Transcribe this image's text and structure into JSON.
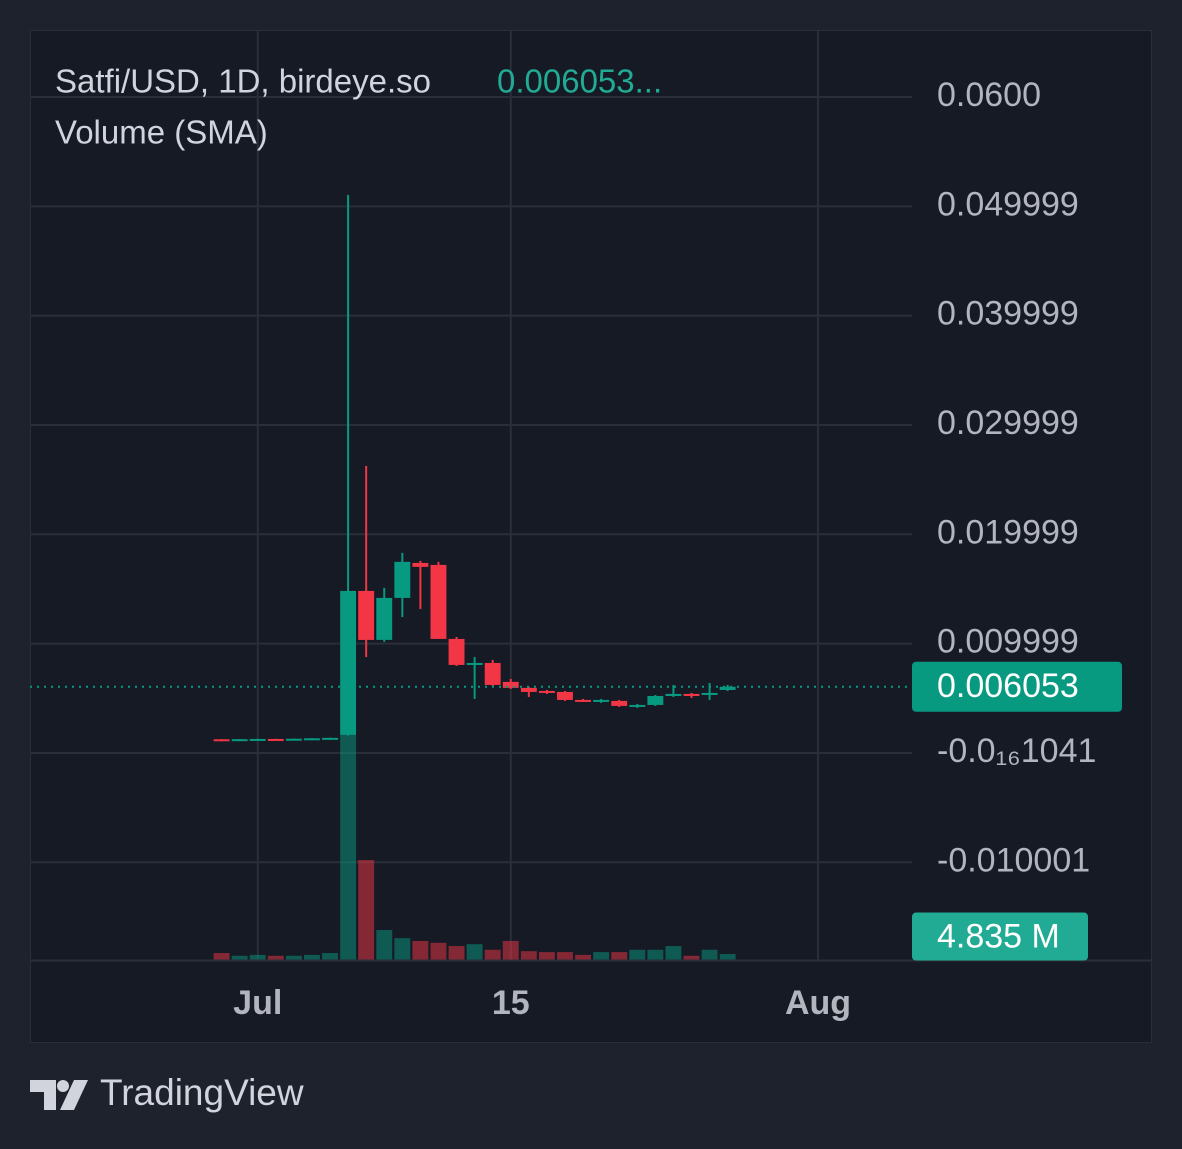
{
  "chart_data": {
    "type": "candlestick",
    "title": "Satfi/USD, 1D, birdeye.so",
    "price_label": "0.006053...",
    "subtitle": "Volume (SMA)",
    "x": [
      0,
      1,
      2,
      3,
      4,
      5,
      6,
      7,
      8,
      9,
      10,
      11,
      12,
      13,
      14,
      15,
      16,
      17,
      18,
      19,
      20,
      21,
      22,
      23,
      24,
      25,
      26,
      27,
      28
    ],
    "xlim": [
      -10.6,
      38.2
    ],
    "xticks": [
      {
        "value": 2,
        "label": "Jul"
      },
      {
        "value": 16,
        "label": "15"
      },
      {
        "value": 33,
        "label": "Aug"
      }
    ],
    "open": [
      0.00125,
      0.00122,
      0.00126,
      0.00128,
      0.00126,
      0.0013,
      0.00134,
      0.00165,
      0.01482,
      0.01034,
      0.01418,
      0.01738,
      0.0172,
      0.01043,
      0.00814,
      0.00823,
      0.0065,
      0.00595,
      0.00567,
      0.00558,
      0.00485,
      0.00467,
      0.00476,
      0.00421,
      0.00439,
      0.00521,
      0.0054,
      0.0053,
      0.00576
    ],
    "high": [
      0.00127,
      0.00128,
      0.0013,
      0.0013,
      0.00132,
      0.00136,
      0.0014,
      0.05105,
      0.02626,
      0.0151,
      0.0183,
      0.01757,
      0.01748,
      0.01061,
      0.00878,
      0.00851,
      0.00677,
      0.00604,
      0.00576,
      0.00567,
      0.00494,
      0.00494,
      0.00485,
      0.00448,
      0.0053,
      0.00622,
      0.00549,
      0.0064,
      0.00622
    ],
    "low": [
      0.0012,
      0.0012,
      0.00124,
      0.00124,
      0.00125,
      0.00128,
      0.00132,
      0.0016,
      0.00878,
      0.01016,
      0.01244,
      0.01317,
      0.01043,
      0.00796,
      0.00494,
      0.00613,
      0.00586,
      0.00512,
      0.0054,
      0.00476,
      0.00467,
      0.00458,
      0.00421,
      0.00412,
      0.0043,
      0.00512,
      0.00503,
      0.00485,
      0.00567
    ],
    "close": [
      0.00122,
      0.00126,
      0.00128,
      0.00126,
      0.0013,
      0.00134,
      0.00138,
      0.01482,
      0.01034,
      0.01418,
      0.01748,
      0.01702,
      0.01043,
      0.00805,
      0.00823,
      0.00622,
      0.00595,
      0.00558,
      0.00549,
      0.00485,
      0.00476,
      0.00485,
      0.0043,
      0.00439,
      0.00521,
      0.0054,
      0.00521,
      0.00549,
      0.006053
    ],
    "up_color": "#089981",
    "down_color": "#f23645",
    "ylim": [
      -0.01894,
      0.06613
    ],
    "yticks": [
      {
        "value": 0.06,
        "label": "0.0600"
      },
      {
        "value": 0.05,
        "label": "0.049999"
      },
      {
        "value": 0.04,
        "label": "0.039999"
      },
      {
        "value": 0.03,
        "label": "0.029999"
      },
      {
        "value": 0.02,
        "label": "0.019999"
      },
      {
        "value": 0.01,
        "label": "0.009999"
      },
      {
        "value": -1.041e-18,
        "label": "-0.0₁₆1041"
      },
      {
        "value": -0.01,
        "label": "-0.010001"
      }
    ],
    "grid": true,
    "volume": [
      1500000,
      900000,
      1100000,
      900000,
      900000,
      1100000,
      1500000,
      48400000,
      21500000,
      6450000,
      4700000,
      4100000,
      3700000,
      3000000,
      3400000,
      2200000,
      4100000,
      1900000,
      1700000,
      1700000,
      1100000,
      1700000,
      1700000,
      2200000,
      2200000,
      3000000,
      900000,
      2200000,
      1300000
    ],
    "y2lim": [
      0,
      200000000
    ],
    "volume_label": {
      "value": 4835000,
      "label": "4.835 M"
    },
    "footer": "TradingView"
  }
}
